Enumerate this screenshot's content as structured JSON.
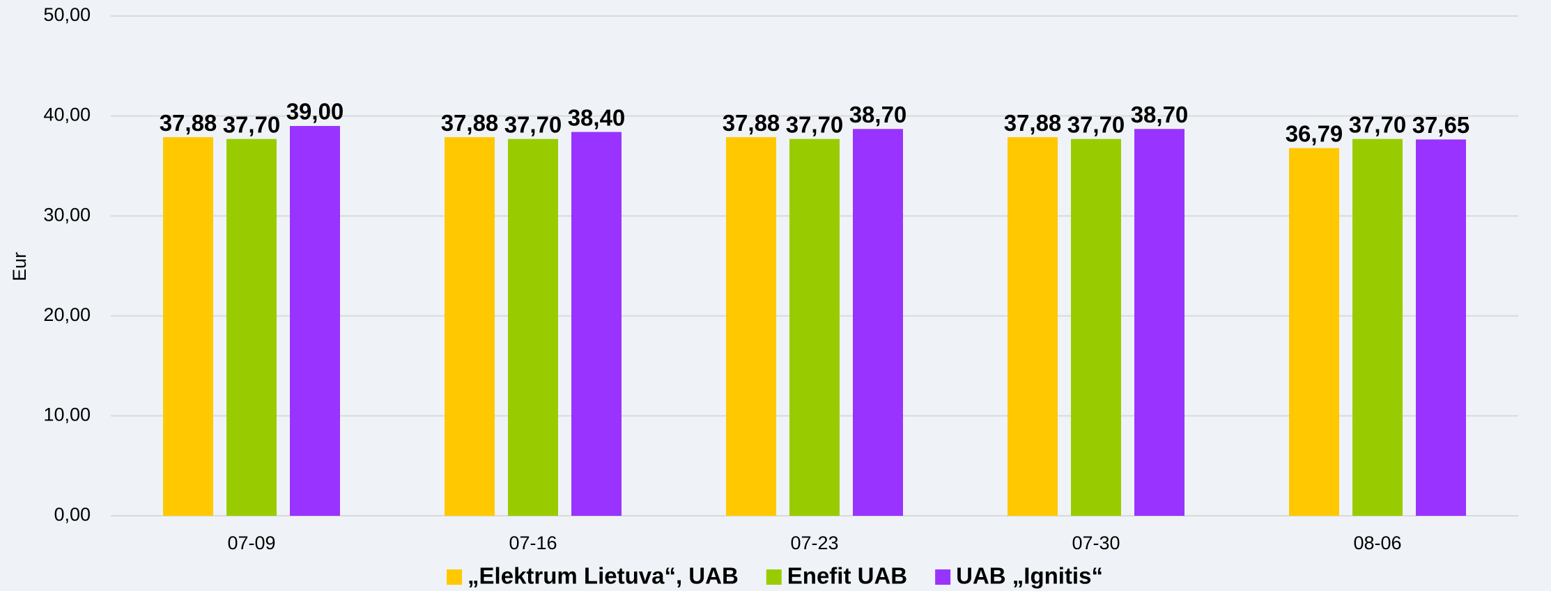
{
  "chart_data": {
    "type": "bar",
    "y_label": "Eur",
    "categories": [
      "07-09",
      "07-16",
      "07-23",
      "07-30",
      "08-06"
    ],
    "series": [
      {
        "name": "„Elektrum Lietuva“, UAB",
        "color": "#ffc800",
        "label_color": "#f7b928",
        "values": [
          37.88,
          37.88,
          37.88,
          37.88,
          36.79
        ],
        "value_labels": [
          "37,88",
          "37,88",
          "37,88",
          "37,88",
          "36,79"
        ]
      },
      {
        "name": "Enefit UAB",
        "color": "#99cc00",
        "label_color": "#92d050",
        "values": [
          37.7,
          37.7,
          37.7,
          37.7,
          37.7
        ],
        "value_labels": [
          "37,70",
          "37,70",
          "37,70",
          "37,70",
          "37,70"
        ]
      },
      {
        "name": "UAB „Ignitis“",
        "color": "#9933ff",
        "label_color": "#9b26c4",
        "values": [
          39.0,
          38.4,
          38.7,
          38.7,
          37.65
        ],
        "value_labels": [
          "39,00",
          "38,40",
          "38,70",
          "38,70",
          "37,65"
        ]
      }
    ],
    "ylim": [
      0,
      50
    ],
    "yticks": [
      {
        "value": 0,
        "label": "0,00"
      },
      {
        "value": 10,
        "label": "10,00"
      },
      {
        "value": 20,
        "label": "20,00"
      },
      {
        "value": 30,
        "label": "30,00"
      },
      {
        "value": 40,
        "label": "40,00"
      },
      {
        "value": 50,
        "label": "50,00"
      }
    ],
    "grid": true,
    "legend": "bottom"
  }
}
